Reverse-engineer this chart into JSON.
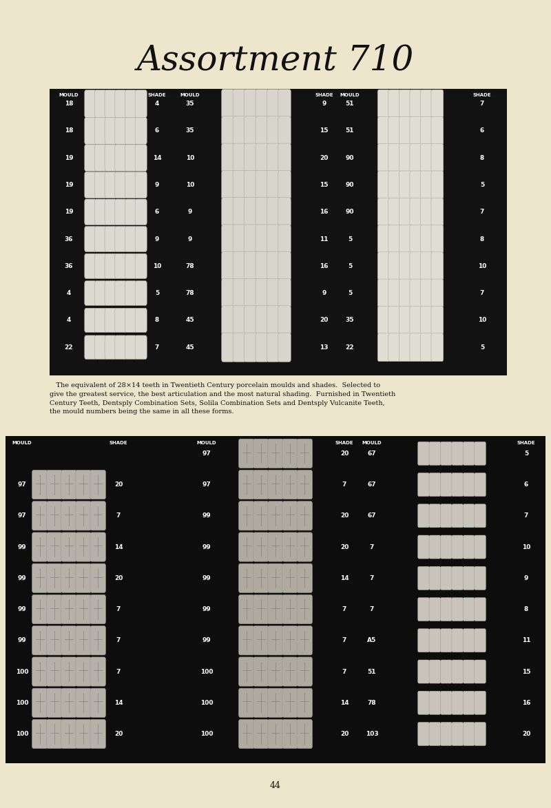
{
  "title": "Assortment 710",
  "page_bg": "#ede5cc",
  "title_fontsize": 36,
  "body_text": "   The equivalent of 28×14 teeth in Twentieth Century porcelain moulds and shades.  Selected to\ngive the greatest service, the best articulation and the most natural shading.  Furnished in Twentieth\nCentury Teeth, Dentsply Combination Sets, Solila Combination Sets and Dentsply Vulcanite Teeth,\nthe mould numbers being the same in all these forms.",
  "page_number": "44",
  "top_board": {
    "bx": 0.09,
    "by": 0.535,
    "bw": 0.83,
    "bh": 0.355,
    "header_labels": [
      "MOULD",
      "SHADE",
      "MOULD",
      "SHADE",
      "MOULD",
      "",
      "SHADE"
    ],
    "rows_left": [
      {
        "mould": "18",
        "shade": "4"
      },
      {
        "mould": "18",
        "shade": "6"
      },
      {
        "mould": "19",
        "shade": "14"
      },
      {
        "mould": "19",
        "shade": "9"
      },
      {
        "mould": "19",
        "shade": "6"
      },
      {
        "mould": "36",
        "shade": "9"
      },
      {
        "mould": "36",
        "shade": "10"
      },
      {
        "mould": "4",
        "shade": "5"
      },
      {
        "mould": "4",
        "shade": "8"
      },
      {
        "mould": "22",
        "shade": "7"
      }
    ],
    "rows_mid": [
      {
        "mould": "35",
        "shade": "9"
      },
      {
        "mould": "35",
        "shade": "15"
      },
      {
        "mould": "10",
        "shade": "20"
      },
      {
        "mould": "10",
        "shade": "15"
      },
      {
        "mould": "9",
        "shade": "16"
      },
      {
        "mould": "9",
        "shade": "11"
      },
      {
        "mould": "78",
        "shade": "16"
      },
      {
        "mould": "78",
        "shade": "9"
      },
      {
        "mould": "45",
        "shade": "20"
      },
      {
        "mould": "45",
        "shade": "13"
      }
    ],
    "rows_right": [
      {
        "mould": "51",
        "shade": "7"
      },
      {
        "mould": "51",
        "shade": "6"
      },
      {
        "mould": "90",
        "shade": "8"
      },
      {
        "mould": "90",
        "shade": "5"
      },
      {
        "mould": "90",
        "shade": "7"
      },
      {
        "mould": "5",
        "shade": "8"
      },
      {
        "mould": "5",
        "shade": "10"
      },
      {
        "mould": "5",
        "shade": "7"
      },
      {
        "mould": "35",
        "shade": "10"
      },
      {
        "mould": "22",
        "shade": "5"
      }
    ]
  },
  "bottom_board": {
    "bx": 0.01,
    "by": 0.055,
    "bw": 0.98,
    "bh": 0.405,
    "rows_left": [
      {
        "mould": "",
        "shade": ""
      },
      {
        "mould": "97",
        "shade": "20"
      },
      {
        "mould": "97",
        "shade": "7"
      },
      {
        "mould": "99",
        "shade": "14"
      },
      {
        "mould": "99",
        "shade": "20"
      },
      {
        "mould": "99",
        "shade": "7"
      },
      {
        "mould": "99",
        "shade": "7"
      },
      {
        "mould": "100",
        "shade": "7"
      },
      {
        "mould": "100",
        "shade": "14"
      },
      {
        "mould": "100",
        "shade": "20"
      }
    ],
    "rows_mid": [
      {
        "mould": "97",
        "shade": "20"
      },
      {
        "mould": "97",
        "shade": "7"
      },
      {
        "mould": "99",
        "shade": "20"
      },
      {
        "mould": "99",
        "shade": "20"
      },
      {
        "mould": "99",
        "shade": "14"
      },
      {
        "mould": "99",
        "shade": "7"
      },
      {
        "mould": "99",
        "shade": "7"
      },
      {
        "mould": "100",
        "shade": "7"
      },
      {
        "mould": "100",
        "shade": "14"
      },
      {
        "mould": "100",
        "shade": "20"
      }
    ],
    "rows_right": [
      {
        "mould": "67",
        "shade": "5"
      },
      {
        "mould": "67",
        "shade": "6"
      },
      {
        "mould": "67",
        "shade": "7"
      },
      {
        "mould": "7",
        "shade": "10"
      },
      {
        "mould": "7",
        "shade": "9"
      },
      {
        "mould": "7",
        "shade": "8"
      },
      {
        "mould": "A5",
        "shade": "11"
      },
      {
        "mould": "51",
        "shade": "15"
      },
      {
        "mould": "78",
        "shade": "16"
      },
      {
        "mould": "103",
        "shade": "20"
      }
    ]
  }
}
